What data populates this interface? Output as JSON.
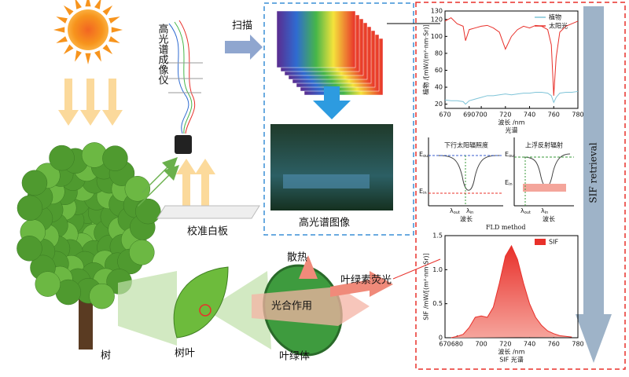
{
  "diagram": {
    "imager": "高光谱成像仪",
    "scan": "扫描",
    "calibration_board": "校准白板",
    "hyperspectral_image": "高光谱图像",
    "tree": "树",
    "leaf": "树叶",
    "chloroplast": "叶绿体",
    "heat_dissipation": "散热",
    "photosynthesis": "光合作用",
    "chlorophyll_fluorescence": "叶绿素荧光",
    "retrieval": "SIF retrieval",
    "fld": {
      "downwelling": "下行太阳辐照度",
      "upwelling": "上浮反射辐射",
      "wavelength": "波长",
      "method": "FLD method",
      "e": "E",
      "lambda": "λ",
      "out": "out",
      "in": "in"
    }
  },
  "chart_data": [
    {
      "type": "line",
      "y_label": "植物 /[mW/(m²·nm·Sr)]",
      "x_label": "波长 /nm",
      "subtitle": "光谱",
      "legend": "upper right",
      "xlim": [
        670,
        780
      ],
      "xticks": [
        670,
        690,
        700,
        720,
        740,
        760,
        780
      ],
      "ylim": [
        15,
        130
      ],
      "yticks": [
        20,
        40,
        60,
        80,
        100,
        120,
        130
      ],
      "x": [
        670,
        675,
        680,
        685,
        687,
        690,
        695,
        700,
        705,
        710,
        715,
        720,
        725,
        730,
        735,
        740,
        745,
        750,
        755,
        758,
        760,
        762,
        765,
        770,
        775,
        780
      ],
      "series": [
        {
          "name": "植物",
          "color": "#7fc4d8",
          "values": [
            25,
            24,
            24,
            23,
            20,
            24,
            26,
            28,
            30,
            30,
            31,
            32,
            31,
            32,
            33,
            33,
            34,
            34,
            33,
            30,
            22,
            28,
            33,
            34,
            34,
            35
          ]
        },
        {
          "name": "太阳光",
          "color": "#e8302a",
          "values": [
            118,
            122,
            115,
            112,
            95,
            108,
            110,
            112,
            113,
            110,
            105,
            85,
            100,
            108,
            112,
            110,
            113,
            112,
            108,
            90,
            30,
            75,
            105,
            112,
            115,
            118
          ]
        }
      ]
    },
    {
      "type": "area",
      "y_label": "SIF /mW/[(m²·nm·Sr)]",
      "x_label": "波长 /nm",
      "subtitle": "SIF 光谱",
      "legend": "upper right",
      "xlim": [
        670,
        780
      ],
      "xticks": [
        670,
        680,
        700,
        720,
        740,
        760,
        780
      ],
      "ylim": [
        0,
        1.5
      ],
      "yticks": [
        0,
        0.5,
        {
          "value": 1,
          "label": "1.0"
        },
        1.5
      ],
      "x": [
        675,
        680,
        685,
        690,
        695,
        700,
        705,
        710,
        715,
        720,
        725,
        730,
        735,
        740,
        745,
        750,
        755,
        760,
        765,
        770,
        775
      ],
      "series": [
        {
          "name": "SIF",
          "color": "#e8302a",
          "values": [
            0,
            0.02,
            0.05,
            0.15,
            0.3,
            0.32,
            0.3,
            0.45,
            0.8,
            1.2,
            1.35,
            1.15,
            0.8,
            0.5,
            0.3,
            0.18,
            0.1,
            0.06,
            0.03,
            0.02,
            0.01
          ]
        }
      ]
    }
  ]
}
